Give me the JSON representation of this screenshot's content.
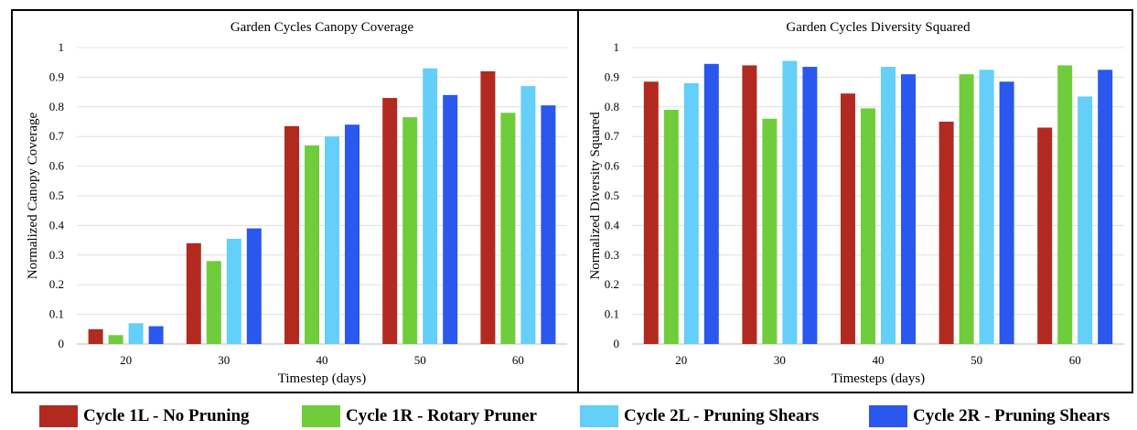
{
  "legend": {
    "items": [
      {
        "label": "Cycle 1L - No Pruning",
        "color": "#b22a1f"
      },
      {
        "label": "Cycle 1R - Rotary Pruner",
        "color": "#6fcd3c"
      },
      {
        "label": "Cycle 2L - Pruning Shears",
        "color": "#64cff8"
      },
      {
        "label": "Cycle 2R - Pruning Shears",
        "color": "#2a57ee"
      }
    ]
  },
  "chart_data": [
    {
      "type": "bar",
      "title": "Garden Cycles Canopy Coverage",
      "xlabel": "Timestep (days)",
      "ylabel": "Normalized Canopy Coverage",
      "categories": [
        "20",
        "30",
        "40",
        "50",
        "60"
      ],
      "ylim": [
        0,
        1
      ],
      "yticks": [
        "0",
        "0.1",
        "0.2",
        "0.3",
        "0.4",
        "0.5",
        "0.6",
        "0.7",
        "0.8",
        "0.9",
        "1"
      ],
      "grid": true,
      "legend_position": "bottom",
      "series": [
        {
          "name": "Cycle 1L - No Pruning",
          "values": [
            0.05,
            0.34,
            0.735,
            0.83,
            0.92
          ]
        },
        {
          "name": "Cycle 1R - Rotary Pruner",
          "values": [
            0.03,
            0.28,
            0.67,
            0.765,
            0.78
          ]
        },
        {
          "name": "Cycle 2L - Pruning Shears",
          "values": [
            0.07,
            0.355,
            0.7,
            0.93,
            0.87
          ]
        },
        {
          "name": "Cycle 2R - Pruning Shears",
          "values": [
            0.06,
            0.39,
            0.74,
            0.84,
            0.805
          ]
        }
      ]
    },
    {
      "type": "bar",
      "title": "Garden Cycles Diversity Squared",
      "xlabel": "Timesteps (days)",
      "ylabel": "Normalized Diversity Squared",
      "categories": [
        "20",
        "30",
        "40",
        "50",
        "60"
      ],
      "ylim": [
        0,
        1
      ],
      "yticks": [
        "0",
        "0.1",
        "0.2",
        "0.3",
        "0.4",
        "0.5",
        "0.6",
        "0.7",
        "0.8",
        "0.9",
        "1"
      ],
      "grid": true,
      "legend_position": "bottom",
      "series": [
        {
          "name": "Cycle 1L - No Pruning",
          "values": [
            0.885,
            0.94,
            0.845,
            0.75,
            0.73
          ]
        },
        {
          "name": "Cycle 1R - Rotary Pruner",
          "values": [
            0.79,
            0.76,
            0.795,
            0.91,
            0.94
          ]
        },
        {
          "name": "Cycle 2L - Pruning Shears",
          "values": [
            0.88,
            0.955,
            0.935,
            0.925,
            0.835
          ]
        },
        {
          "name": "Cycle 2R - Pruning Shears",
          "values": [
            0.945,
            0.935,
            0.91,
            0.885,
            0.925
          ]
        }
      ]
    }
  ]
}
